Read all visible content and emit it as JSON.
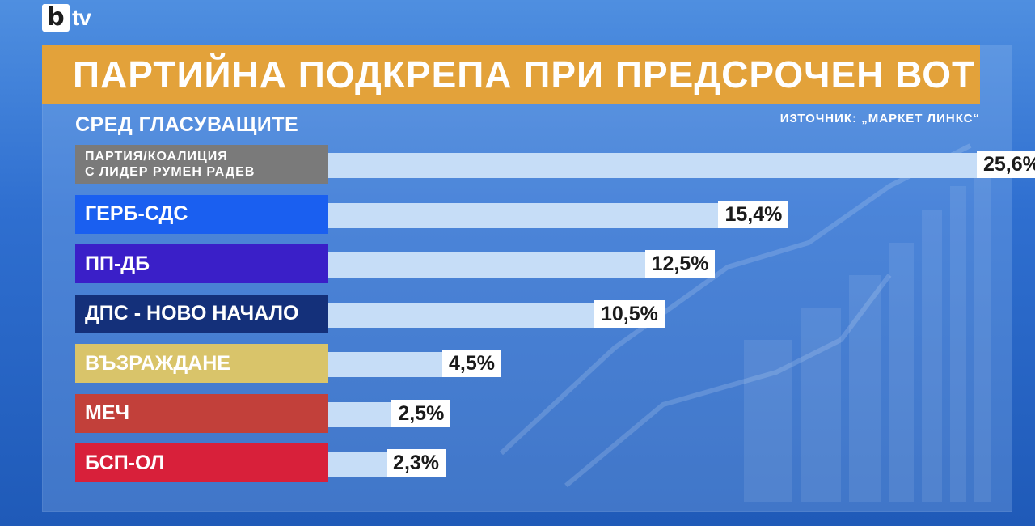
{
  "brand": {
    "logo_mark": "b",
    "logo_text": "tv"
  },
  "header": {
    "title": "ПАРТИЙНА ПОДКРЕПА ПРИ ПРЕДСРОЧЕН ВОТ",
    "subtitle": "СРЕД ГЛАСУВАЩИТЕ",
    "source": "ИЗТОЧНИК: „МАРКЕТ ЛИНКС“"
  },
  "colors": {
    "title_bar": "#e3a23a",
    "bar_fill": "#c6ddf7"
  },
  "chart_data": {
    "type": "bar",
    "orientation": "horizontal",
    "title": "ПАРТИЙНА ПОДКРЕПА ПРИ ПРЕДСРОЧЕН ВОТ",
    "subtitle": "СРЕД ГЛАСУВАЩИТЕ",
    "categories": [
      "ПАРТИЯ/КОАЛИЦИЯ С ЛИДЕР РУМЕН РАДЕВ",
      "ГЕРБ-СДС",
      "ПП-ДБ",
      "ДПС - НОВО НАЧАЛО",
      "ВЪЗРАЖДАНЕ",
      "МЕЧ",
      "БСП-ОЛ"
    ],
    "label_lines": [
      [
        "ПАРТИЯ/КОАЛИЦИЯ",
        "С ЛИДЕР РУМЕН РАДЕВ"
      ],
      [
        "ГЕРБ-СДС"
      ],
      [
        "ПП-ДБ"
      ],
      [
        "ДПС - НОВО НАЧАЛО"
      ],
      [
        "ВЪЗРАЖДАНЕ"
      ],
      [
        "МЕЧ"
      ],
      [
        "БСП-ОЛ"
      ]
    ],
    "values": [
      25.6,
      15.4,
      12.5,
      10.5,
      4.5,
      2.5,
      2.3
    ],
    "value_labels": [
      "25,6%",
      "15,4%",
      "12,5%",
      "10,5%",
      "4,5%",
      "2,5%",
      "2,3%"
    ],
    "label_colors": [
      "#7a7a7a",
      "#1a5ff0",
      "#3a1fc8",
      "#14307a",
      "#d9c46a",
      "#c2403a",
      "#d8203a"
    ],
    "xlim": [
      0,
      25.6
    ],
    "grid": false,
    "legend": "none"
  }
}
